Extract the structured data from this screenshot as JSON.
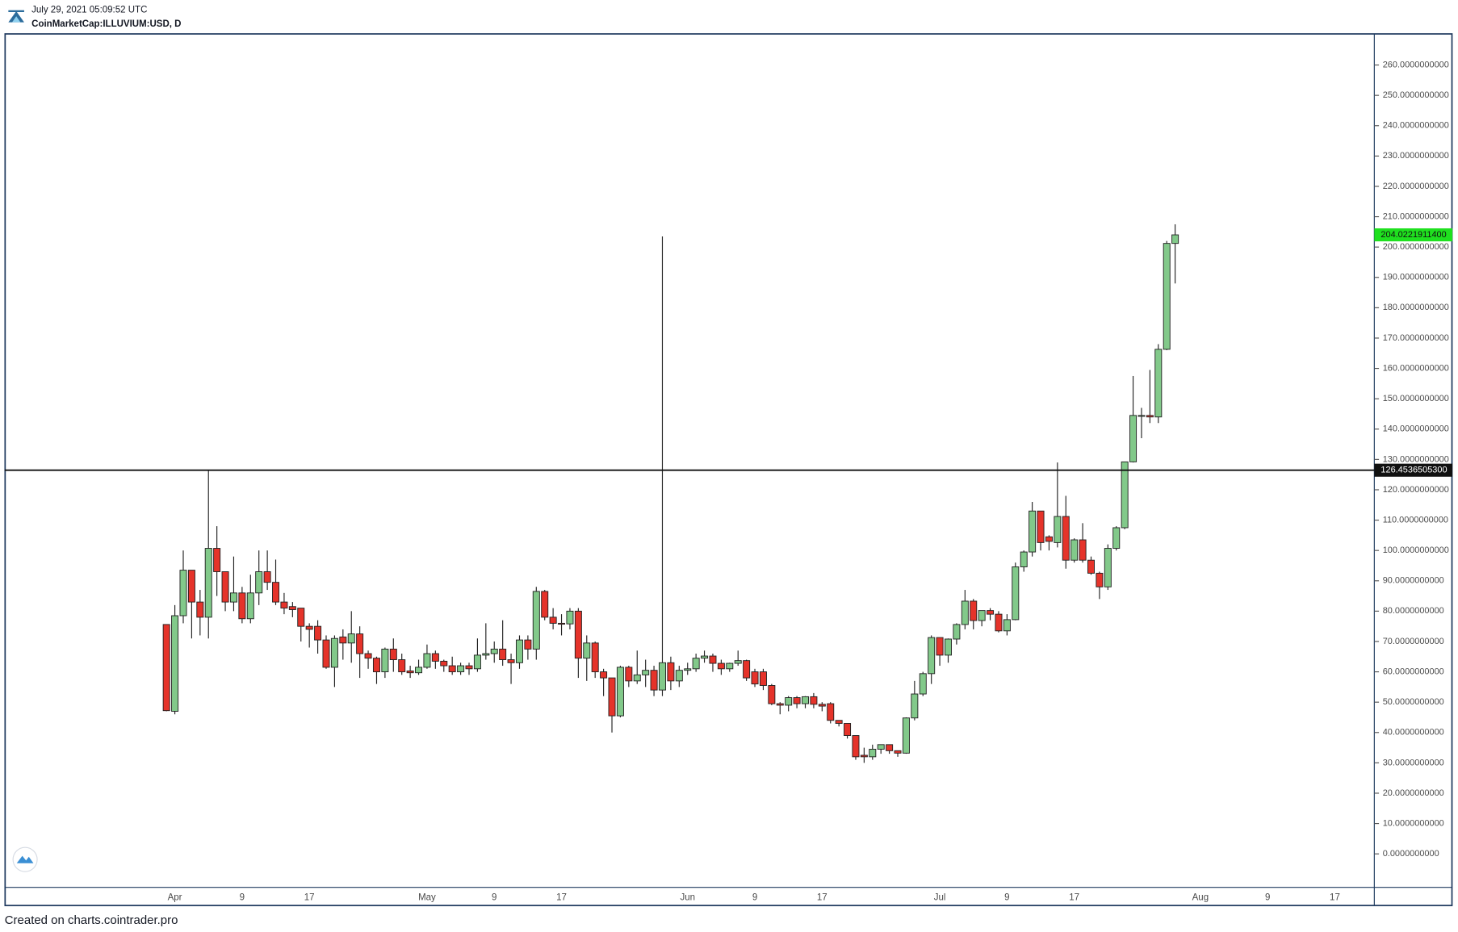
{
  "header": {
    "timestamp": "July 29, 2021 05:09:52 UTC",
    "symbol": "CoinMarketCap:ILLUVIUM:USD, D"
  },
  "footer": "Created on charts.cointrader.pro",
  "chart_data": {
    "type": "candlestick",
    "up_color": "#82c98a",
    "down_color": "#e5332a",
    "ylim": [
      -11.05,
      270.4
    ],
    "yticks": [
      {
        "value": 0,
        "label": "0.0000000000"
      },
      {
        "value": 10,
        "label": "10.0000000000"
      },
      {
        "value": 20,
        "label": "20.0000000000"
      },
      {
        "value": 30,
        "label": "30.0000000000"
      },
      {
        "value": 40,
        "label": "40.0000000000"
      },
      {
        "value": 50,
        "label": "50.0000000000"
      },
      {
        "value": 60,
        "label": "60.0000000000"
      },
      {
        "value": 70,
        "label": "70.0000000000"
      },
      {
        "value": 80,
        "label": "80.0000000000"
      },
      {
        "value": 90,
        "label": "90.0000000000"
      },
      {
        "value": 100,
        "label": "100.0000000000"
      },
      {
        "value": 110,
        "label": "110.0000000000"
      },
      {
        "value": 120,
        "label": "120.0000000000"
      },
      {
        "value": 130,
        "label": "130.0000000000"
      },
      {
        "value": 140,
        "label": "140.0000000000"
      },
      {
        "value": 150,
        "label": "150.0000000000"
      },
      {
        "value": 160,
        "label": "160.0000000000"
      },
      {
        "value": 170,
        "label": "170.0000000000"
      },
      {
        "value": 180,
        "label": "180.0000000000"
      },
      {
        "value": 190,
        "label": "190.0000000000"
      },
      {
        "value": 200,
        "label": "200.0000000000"
      },
      {
        "value": 210,
        "label": "210.0000000000"
      },
      {
        "value": 220,
        "label": "220.0000000000"
      },
      {
        "value": 230,
        "label": "230.0000000000"
      },
      {
        "value": 240,
        "label": "240.0000000000"
      },
      {
        "value": 250,
        "label": "250.0000000000"
      },
      {
        "value": 260,
        "label": "260.0000000000"
      }
    ],
    "hline": {
      "value": 126.45365053,
      "label": "126.4536505300"
    },
    "last_price": {
      "value": 204.02219114,
      "label": "204.0221911400"
    },
    "categories": [
      null,
      "Apr",
      null,
      null,
      null,
      null,
      null,
      null,
      null,
      "9",
      null,
      null,
      null,
      null,
      null,
      null,
      null,
      "17",
      null,
      null,
      null,
      null,
      null,
      null,
      null,
      null,
      null,
      null,
      null,
      null,
      null,
      "May",
      null,
      null,
      null,
      null,
      null,
      null,
      null,
      "9",
      null,
      null,
      null,
      null,
      null,
      null,
      null,
      "17",
      null,
      null,
      null,
      null,
      null,
      null,
      null,
      null,
      null,
      null,
      null,
      null,
      null,
      null,
      "Jun",
      null,
      null,
      null,
      null,
      null,
      null,
      null,
      "9",
      null,
      null,
      null,
      null,
      null,
      null,
      null,
      "17",
      null,
      null,
      null,
      null,
      null,
      null,
      null,
      null,
      null,
      null,
      null,
      null,
      null,
      "Jul",
      null,
      null,
      null,
      null,
      null,
      null,
      null,
      "9",
      null,
      null,
      null,
      null,
      null,
      null,
      null,
      "17",
      null,
      null,
      null,
      null,
      null,
      null,
      null,
      null,
      null,
      null,
      null,
      null,
      null,
      null,
      "Aug",
      null,
      null,
      null,
      null,
      null,
      null,
      null,
      "9",
      null,
      null,
      null,
      null,
      null,
      null,
      null,
      "17"
    ],
    "open": [
      75.6,
      47,
      78.5,
      93.5,
      83,
      78,
      100.7,
      93,
      83,
      86,
      77.5,
      86,
      93,
      89.5,
      83,
      81.5,
      81,
      75,
      75,
      70.5,
      61.5,
      71.5,
      69.5,
      72.5,
      66,
      64.5,
      60,
      67.5,
      64,
      60.3,
      59.7,
      61.5,
      66,
      63.5,
      62,
      60,
      62,
      61,
      65.5,
      66,
      67.5,
      64,
      63,
      70.5,
      67.5,
      86.5,
      78,
      76,
      75.8,
      80,
      64.5,
      69.5,
      60,
      58,
      45.5,
      61.5,
      57,
      59,
      60.5,
      54,
      63,
      57,
      60.5,
      61,
      64.5,
      65.2,
      62.8,
      61,
      62.8,
      63.7,
      60,
      60,
      55.5,
      49.5,
      49,
      51.5,
      49.5,
      51.8,
      49.3,
      49.5,
      44,
      43,
      39,
      32.5,
      32,
      34.5,
      36,
      34,
      33.2,
      44.8,
      52.7,
      59.4,
      71.3,
      65.5,
      70.8,
      75.6,
      83.3,
      76.9,
      80.2,
      79,
      73.5,
      77.2,
      94.6,
      99.5,
      113,
      104.5,
      102.6,
      111.2,
      96.8,
      103.5,
      96.8,
      92.5,
      88,
      100.7,
      107.5,
      129.2,
      144.3,
      144.5,
      144,
      166.3,
      201.2,
      null,
      null,
      null,
      null,
      null,
      null,
      null,
      null,
      null,
      null,
      null,
      null,
      null,
      null,
      null,
      null,
      null,
      null,
      null
    ],
    "high": [
      75.6,
      82,
      100,
      93.5,
      87,
      126.5,
      108,
      93,
      98,
      88,
      92,
      100,
      100,
      97,
      86,
      83,
      81,
      76,
      77,
      72,
      72,
      74,
      80,
      75,
      67,
      65,
      68,
      71,
      66,
      62,
      64,
      69,
      67,
      64,
      65,
      63,
      63,
      71,
      76,
      70,
      77,
      66,
      72,
      72,
      88,
      87,
      81,
      79,
      81,
      81,
      72,
      70,
      61,
      58,
      62,
      62,
      67,
      64,
      62,
      203.5,
      65,
      62,
      63,
      66,
      67,
      66,
      64,
      63,
      67,
      64,
      61,
      61,
      56,
      50,
      52,
      52,
      52,
      53,
      50,
      50,
      44,
      43,
      39,
      35,
      36,
      36,
      36,
      34,
      45,
      57,
      60,
      72,
      71,
      71,
      76,
      87,
      84,
      80,
      81,
      80,
      79,
      96,
      100,
      116,
      113,
      105,
      129,
      118,
      104,
      109,
      98,
      93,
      102,
      108,
      129.2,
      157.5,
      147,
      159.5,
      168,
      202,
      207.5,
      null,
      null,
      null,
      null,
      null,
      null,
      null,
      null,
      null,
      null,
      null,
      null,
      null,
      null,
      null,
      null,
      null,
      null,
      null
    ],
    "low": [
      47,
      46,
      76,
      71,
      72,
      71,
      85,
      80,
      80,
      76,
      76,
      82,
      87,
      82,
      79,
      78,
      70,
      68,
      66,
      61,
      55,
      64,
      63,
      58,
      61,
      56,
      58,
      60,
      59,
      58,
      59,
      61,
      61,
      60,
      59,
      59,
      59,
      60,
      64,
      63,
      62,
      56,
      61,
      64,
      64,
      77,
      74,
      72,
      74,
      58,
      57,
      58,
      52,
      40,
      45,
      55,
      56,
      55,
      52,
      52,
      54,
      55,
      59,
      60,
      63,
      60,
      59,
      60,
      62,
      57,
      55,
      54,
      49,
      46,
      47,
      48,
      48,
      48,
      47,
      43,
      42,
      38,
      31,
      30,
      31,
      33,
      33,
      32,
      33,
      44,
      52,
      56,
      62,
      63,
      69,
      74,
      74,
      75,
      77,
      73,
      72,
      77,
      93,
      98,
      100,
      100,
      101,
      94,
      96,
      96,
      92,
      84,
      87,
      100,
      107,
      129,
      137,
      142,
      142,
      166,
      188,
      null,
      null,
      null,
      null,
      null,
      null,
      null,
      null,
      null,
      null,
      null,
      null,
      null,
      null,
      null,
      null,
      null,
      null,
      null
    ],
    "close": [
      47.2,
      78.5,
      93.5,
      83,
      78,
      100.7,
      93,
      83,
      86,
      77.5,
      86,
      93,
      89.5,
      83,
      81,
      80.5,
      75,
      74,
      70.5,
      61.5,
      71,
      69.5,
      72.5,
      66,
      64.5,
      60,
      67.5,
      64,
      60,
      59.7,
      61.5,
      66,
      63.5,
      62,
      60,
      62,
      61,
      65.5,
      66,
      67.5,
      64,
      63,
      70.5,
      67.5,
      86.5,
      78,
      76,
      75.8,
      80,
      64.5,
      69.5,
      60,
      58,
      45.5,
      61.5,
      57,
      59,
      60.5,
      54,
      63,
      57,
      60.5,
      61,
      64.5,
      65.2,
      62.8,
      61,
      62.8,
      63.7,
      58,
      56,
      55.5,
      49.5,
      49,
      51.5,
      49.5,
      51.8,
      49.3,
      48.7,
      44,
      43,
      39,
      32,
      32,
      34.5,
      36,
      34,
      33.2,
      44.8,
      52.7,
      59.4,
      71.3,
      65.5,
      70.8,
      75.6,
      83.3,
      76.9,
      80.2,
      79,
      73.5,
      77.2,
      94.6,
      99.5,
      113,
      102.6,
      103,
      111.2,
      96.8,
      103.5,
      96.8,
      92.5,
      88,
      100.7,
      107.5,
      129.2,
      144.5,
      144.5,
      144,
      166.3,
      201.2,
      204.02219114,
      null,
      null,
      null,
      null,
      null,
      null,
      null,
      null,
      null,
      null,
      null,
      null,
      null,
      null,
      null,
      null,
      null,
      null,
      null
    ]
  }
}
